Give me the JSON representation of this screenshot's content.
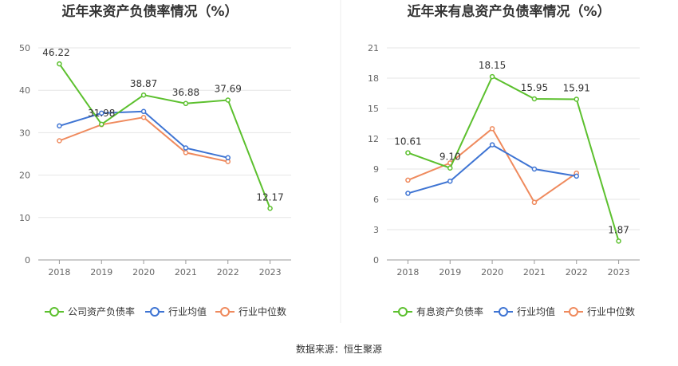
{
  "chart_data": [
    {
      "type": "line",
      "title": "近年来资产负债率情况（%）",
      "categories": [
        "2018",
        "2019",
        "2020",
        "2021",
        "2022",
        "2023"
      ],
      "ylim": [
        0,
        50
      ],
      "yticks": [
        0,
        10,
        20,
        30,
        40,
        50
      ],
      "grid": true,
      "legend_position": "bottom",
      "series": [
        {
          "name": "公司资产负债率",
          "color": "#5cc02e",
          "values": [
            46.22,
            31.98,
            38.87,
            36.88,
            37.69,
            12.17
          ],
          "labels": [
            "46.22",
            "31.98",
            "38.87",
            "36.88",
            "37.69",
            "12.17"
          ]
        },
        {
          "name": "行业均值",
          "color": "#3e74d3",
          "values": [
            31.6,
            34.6,
            35.0,
            26.4,
            24.1,
            null
          ]
        },
        {
          "name": "行业中位数",
          "color": "#ef8a5d",
          "values": [
            28.1,
            31.9,
            33.6,
            25.3,
            23.2,
            null
          ]
        }
      ]
    },
    {
      "type": "line",
      "title": "近年来有息资产负债率情况（%）",
      "categories": [
        "2018",
        "2019",
        "2020",
        "2021",
        "2022",
        "2023"
      ],
      "ylim": [
        0,
        21
      ],
      "yticks": [
        0,
        3,
        6,
        9,
        12,
        15,
        18,
        21
      ],
      "grid": true,
      "legend_position": "bottom",
      "series": [
        {
          "name": "有息资产负债率",
          "color": "#5cc02e",
          "values": [
            10.61,
            9.1,
            18.15,
            15.95,
            15.91,
            1.87
          ],
          "labels": [
            "10.61",
            "9.10",
            "18.15",
            "15.95",
            "15.91",
            "1.87"
          ]
        },
        {
          "name": "行业均值",
          "color": "#3e74d3",
          "values": [
            6.6,
            7.8,
            11.4,
            9.0,
            8.3,
            null
          ]
        },
        {
          "name": "行业中位数",
          "color": "#ef8a5d",
          "values": [
            7.9,
            9.6,
            13.0,
            5.7,
            8.6,
            null
          ]
        }
      ]
    }
  ],
  "footer": {
    "source": "数据来源：恒生聚源"
  }
}
